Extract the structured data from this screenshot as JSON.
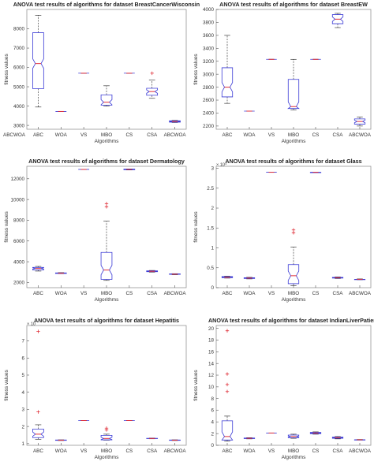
{
  "charts": [
    {
      "title": "ANOVA test results of algorithms for dataset BreastCancerWisconsin",
      "xlabel": "Algorithms",
      "ylabel": "fitness values",
      "categories": [
        "ABC",
        "WOA",
        "VS",
        "MBO",
        "CS",
        "CSA",
        "ABCWOA"
      ],
      "ylim": [
        2800,
        9000
      ],
      "ticks": [
        3000,
        4000,
        5000,
        6000,
        7000,
        8000
      ],
      "tick_labels": [
        "3000",
        "4000",
        "5000",
        "6000",
        "7000",
        "8000"
      ],
      "exponent": "",
      "left_extra_label": "ABCWOA"
    },
    {
      "title": "ANOVA test results of algorithms for dataset BreastEW",
      "xlabel": "Algorithms",
      "ylabel": "fitness values",
      "categories": [
        "ABC",
        "WOA",
        "VS",
        "MBO",
        "CS",
        "CSA",
        "ABCWOA"
      ],
      "ylim": [
        2150,
        4000
      ],
      "ticks": [
        2200,
        2400,
        2600,
        2800,
        3000,
        3200,
        3400,
        3600,
        3800,
        4000
      ],
      "tick_labels": [
        "2200",
        "2400",
        "2600",
        "2800",
        "3000",
        "3200",
        "3400",
        "3600",
        "3800",
        "4000"
      ],
      "exponent": "",
      "left_extra_label": ""
    },
    {
      "title": "ANOVA test results of algorithms for dataset Dermatology",
      "xlabel": "Algorithms",
      "ylabel": "fitness values",
      "categories": [
        "ABC",
        "WOA",
        "VS",
        "MBO",
        "CS",
        "CSA",
        "ABCWOA"
      ],
      "ylim": [
        1500,
        13200
      ],
      "ticks": [
        2000,
        4000,
        6000,
        8000,
        10000,
        12000
      ],
      "tick_labels": [
        "2000",
        "4000",
        "6000",
        "8000",
        "10000",
        "12000"
      ],
      "exponent": "",
      "left_extra_label": ""
    },
    {
      "title": "ANOVA test results of algorithms for dataset Glass",
      "xlabel": "Algorithms",
      "ylabel": "fitness values",
      "categories": [
        "ABC",
        "WOA",
        "VS",
        "MBO",
        "CS",
        "CSA",
        "ABCWOA"
      ],
      "ylim": [
        0,
        3.05
      ],
      "ticks": [
        0,
        0.5,
        1,
        1.5,
        2,
        2.5,
        3
      ],
      "tick_labels": [
        "0",
        "0.5",
        "1",
        "1.5",
        "2",
        "2.5",
        "3"
      ],
      "exponent": "× 10⁴",
      "left_extra_label": ""
    },
    {
      "title": "ANOVA test results of algorithms for dataset Hepatitis",
      "xlabel": "Algorithms",
      "ylabel": "fitness values",
      "categories": [
        "ABC",
        "WOA",
        "VS",
        "MBO",
        "CS",
        "CSA",
        "ABCWOA"
      ],
      "ylim": [
        0.9,
        7.9
      ],
      "ticks": [
        1,
        2,
        3,
        4,
        5,
        6,
        7
      ],
      "tick_labels": [
        "1",
        "2",
        "3",
        "4",
        "5",
        "6",
        "7"
      ],
      "exponent": "× 10",
      "left_extra_label": ""
    },
    {
      "title": "ANOVA test results of algorithms for dataset IndianLiverPatient",
      "xlabel": "Algorithms",
      "ylabel": "fitness values",
      "categories": [
        "ABC",
        "WOA",
        "VS",
        "MBO",
        "CS",
        "CSA",
        "ABCWOA"
      ],
      "ylim": [
        0,
        20.5
      ],
      "ticks": [
        0,
        2,
        4,
        6,
        8,
        10,
        12,
        14,
        16,
        18,
        20
      ],
      "tick_labels": [
        "0",
        "2",
        "4",
        "6",
        "8",
        "10",
        "12",
        "14",
        "16",
        "18",
        "20"
      ],
      "exponent": "",
      "left_extra_label": ""
    }
  ],
  "chart_data": [
    {
      "type": "boxplot",
      "title": "ANOVA test results of algorithms for dataset BreastCancerWisconsin",
      "xlabel": "Algorithms",
      "ylabel": "fitness values",
      "ylim": [
        2800,
        9000
      ],
      "categories": [
        "ABC",
        "WOA",
        "VS",
        "MBO",
        "CS",
        "CSA",
        "ABCWOA"
      ],
      "boxes": [
        {
          "lw": 3950,
          "q1": 4900,
          "med": 6200,
          "q3": 7800,
          "uw": 8700,
          "outliers": []
        },
        {
          "lw": 3720,
          "q1": 3720,
          "med": 3720,
          "q3": 3720,
          "uw": 3720,
          "outliers": []
        },
        {
          "lw": 5700,
          "q1": 5700,
          "med": 5700,
          "q3": 5700,
          "uw": 5700,
          "outliers": []
        },
        {
          "lw": 4000,
          "q1": 4050,
          "med": 4200,
          "q3": 4580,
          "uw": 5050,
          "outliers": []
        },
        {
          "lw": 5700,
          "q1": 5700,
          "med": 5700,
          "q3": 5700,
          "uw": 5700,
          "outliers": []
        },
        {
          "lw": 4400,
          "q1": 4560,
          "med": 4750,
          "q3": 4920,
          "uw": 5350,
          "outliers": [
            5700
          ]
        },
        {
          "lw": 3150,
          "q1": 3170,
          "med": 3200,
          "q3": 3240,
          "uw": 3260,
          "outliers": []
        }
      ]
    },
    {
      "type": "boxplot",
      "title": "ANOVA test results of algorithms for dataset BreastEW",
      "xlabel": "Algorithms",
      "ylabel": "fitness values",
      "ylim": [
        2150,
        4000
      ],
      "categories": [
        "ABC",
        "WOA",
        "VS",
        "MBO",
        "CS",
        "CSA",
        "ABCWOA"
      ],
      "boxes": [
        {
          "lw": 2550,
          "q1": 2650,
          "med": 2800,
          "q3": 3100,
          "uw": 3600,
          "outliers": []
        },
        {
          "lw": 2430,
          "q1": 2430,
          "med": 2430,
          "q3": 2430,
          "uw": 2430,
          "outliers": []
        },
        {
          "lw": 3230,
          "q1": 3230,
          "med": 3230,
          "q3": 3230,
          "uw": 3230,
          "outliers": []
        },
        {
          "lw": 2450,
          "q1": 2470,
          "med": 2500,
          "q3": 2920,
          "uw": 3230,
          "outliers": []
        },
        {
          "lw": 3230,
          "q1": 3230,
          "med": 3230,
          "q3": 3230,
          "uw": 3230,
          "outliers": []
        },
        {
          "lw": 3720,
          "q1": 3780,
          "med": 3850,
          "q3": 3920,
          "uw": 3940,
          "outliers": []
        },
        {
          "lw": 2200,
          "q1": 2230,
          "med": 2270,
          "q3": 2310,
          "uw": 2340,
          "outliers": []
        }
      ]
    },
    {
      "type": "boxplot",
      "title": "ANOVA test results of algorithms for dataset Dermatology",
      "xlabel": "Algorithms",
      "ylabel": "fitness values",
      "ylim": [
        1500,
        13200
      ],
      "categories": [
        "ABC",
        "WOA",
        "VS",
        "MBO",
        "CS",
        "CSA",
        "ABCWOA"
      ],
      "boxes": [
        {
          "lw": 3100,
          "q1": 3200,
          "med": 3350,
          "q3": 3450,
          "uw": 3550,
          "outliers": []
        },
        {
          "lw": 2850,
          "q1": 2870,
          "med": 2890,
          "q3": 2920,
          "uw": 2950,
          "outliers": []
        },
        {
          "lw": 12900,
          "q1": 12900,
          "med": 12900,
          "q3": 12900,
          "uw": 12900,
          "outliers": []
        },
        {
          "lw": 2200,
          "q1": 2300,
          "med": 3200,
          "q3": 4900,
          "uw": 7900,
          "outliers": [
            9300,
            9600
          ]
        },
        {
          "lw": 12850,
          "q1": 12870,
          "med": 12900,
          "q3": 12930,
          "uw": 12950,
          "outliers": []
        },
        {
          "lw": 3000,
          "q1": 3040,
          "med": 3080,
          "q3": 3120,
          "uw": 3160,
          "outliers": []
        },
        {
          "lw": 2750,
          "q1": 2780,
          "med": 2800,
          "q3": 2830,
          "uw": 2850,
          "outliers": []
        }
      ]
    },
    {
      "type": "boxplot",
      "title": "ANOVA test results of algorithms for dataset Glass",
      "xlabel": "Algorithms",
      "ylabel": "fitness values",
      "ylim": [
        0,
        3.05
      ],
      "y_multiplier": "10^4",
      "categories": [
        "ABC",
        "WOA",
        "VS",
        "MBO",
        "CS",
        "CSA",
        "ABCWOA"
      ],
      "boxes": [
        {
          "lw": 0.24,
          "q1": 0.25,
          "med": 0.26,
          "q3": 0.28,
          "uw": 0.29,
          "outliers": []
        },
        {
          "lw": 0.22,
          "q1": 0.23,
          "med": 0.24,
          "q3": 0.25,
          "uw": 0.26,
          "outliers": []
        },
        {
          "lw": 2.9,
          "q1": 2.9,
          "med": 2.9,
          "q3": 2.9,
          "uw": 2.9,
          "outliers": []
        },
        {
          "lw": 0.05,
          "q1": 0.1,
          "med": 0.3,
          "q3": 0.58,
          "uw": 1.02,
          "outliers": [
            1.38,
            1.45
          ]
        },
        {
          "lw": 2.89,
          "q1": 2.89,
          "med": 2.9,
          "q3": 2.9,
          "uw": 2.9,
          "outliers": []
        },
        {
          "lw": 0.23,
          "q1": 0.24,
          "med": 0.25,
          "q3": 0.26,
          "uw": 0.27,
          "outliers": []
        },
        {
          "lw": 0.2,
          "q1": 0.2,
          "med": 0.21,
          "q3": 0.21,
          "uw": 0.22,
          "outliers": []
        }
      ]
    },
    {
      "type": "boxplot",
      "title": "ANOVA test results of algorithms for dataset Hepatitis",
      "xlabel": "Algorithms",
      "ylabel": "fitness values",
      "ylim": [
        0.9,
        7.9
      ],
      "y_multiplier": "10",
      "categories": [
        "ABC",
        "WOA",
        "VS",
        "MBO",
        "CS",
        "CSA",
        "ABCWOA"
      ],
      "boxes": [
        {
          "lw": 1.25,
          "q1": 1.35,
          "med": 1.55,
          "q3": 1.85,
          "uw": 2.1,
          "outliers": [
            2.85,
            7.55
          ]
        },
        {
          "lw": 1.18,
          "q1": 1.19,
          "med": 1.2,
          "q3": 1.21,
          "uw": 1.22,
          "outliers": []
        },
        {
          "lw": 2.35,
          "q1": 2.35,
          "med": 2.35,
          "q3": 2.35,
          "uw": 2.35,
          "outliers": []
        },
        {
          "lw": 1.2,
          "q1": 1.22,
          "med": 1.3,
          "q3": 1.48,
          "uw": 1.55,
          "outliers": [
            1.8,
            1.9
          ]
        },
        {
          "lw": 2.35,
          "q1": 2.35,
          "med": 2.35,
          "q3": 2.35,
          "uw": 2.35,
          "outliers": []
        },
        {
          "lw": 1.28,
          "q1": 1.29,
          "med": 1.3,
          "q3": 1.31,
          "uw": 1.32,
          "outliers": []
        },
        {
          "lw": 1.18,
          "q1": 1.19,
          "med": 1.2,
          "q3": 1.21,
          "uw": 1.22,
          "outliers": []
        }
      ]
    },
    {
      "type": "boxplot",
      "title": "ANOVA test results of algorithms for dataset IndianLiverPatient",
      "xlabel": "Algorithms",
      "ylabel": "fitness values",
      "ylim": [
        0,
        20.5
      ],
      "categories": [
        "ABC",
        "WOA",
        "VS",
        "MBO",
        "CS",
        "CSA",
        "ABCWOA"
      ],
      "boxes": [
        {
          "lw": 0.7,
          "q1": 0.9,
          "med": 1.5,
          "q3": 4.2,
          "uw": 5.0,
          "outliers": [
            9.2,
            10.4,
            12.2,
            19.6
          ]
        },
        {
          "lw": 1.1,
          "q1": 1.15,
          "med": 1.2,
          "q3": 1.25,
          "uw": 1.3,
          "outliers": []
        },
        {
          "lw": 2.1,
          "q1": 2.1,
          "med": 2.1,
          "q3": 2.1,
          "uw": 2.1,
          "outliers": []
        },
        {
          "lw": 1.2,
          "q1": 1.3,
          "med": 1.5,
          "q3": 1.75,
          "uw": 1.9,
          "outliers": []
        },
        {
          "lw": 1.9,
          "q1": 2.0,
          "med": 2.1,
          "q3": 2.2,
          "uw": 2.3,
          "outliers": []
        },
        {
          "lw": 1.1,
          "q1": 1.2,
          "med": 1.3,
          "q3": 1.4,
          "uw": 1.5,
          "outliers": []
        },
        {
          "lw": 0.9,
          "q1": 0.9,
          "med": 0.95,
          "q3": 0.95,
          "uw": 1.0,
          "outliers": []
        }
      ]
    }
  ],
  "style": {
    "box_color": "#3b3bd6",
    "median_color": "#e0303a",
    "whisker_color": "#222222",
    "outlier_color": "#e0303a",
    "axis_color": "#888888"
  }
}
